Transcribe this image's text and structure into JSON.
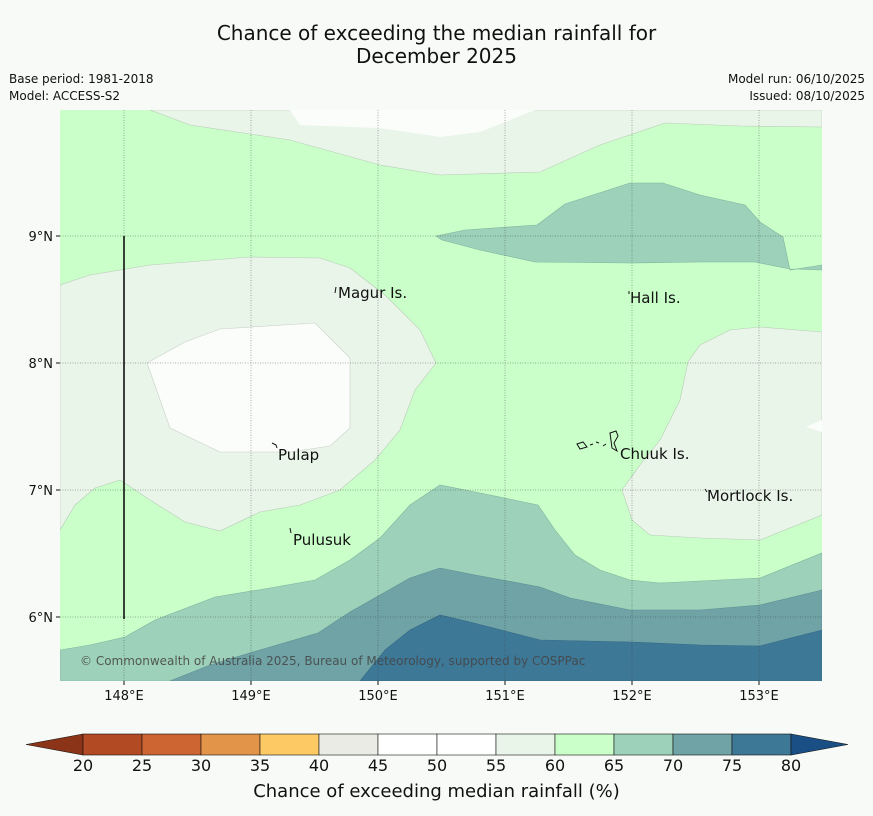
{
  "title": {
    "line1": "Chance of exceeding the median rainfall for",
    "line2": "December 2025"
  },
  "meta": {
    "base_period": "Base period: 1981-2018",
    "model": "Model: ACCESS-S2",
    "model_run": "Model run: 06/10/2025",
    "issued": "Issued: 08/10/2025"
  },
  "map": {
    "copyright": "© Commonwealth of Australia 2025, Bureau of Meteorology, supported by COSPPac",
    "places": [
      "Magur Is.",
      "Hall Is.",
      "Pulap",
      "Chuuk Is.",
      "Mortlock Is.",
      "Pulusuk"
    ],
    "lat_ticks": [
      "9°N",
      "8°N",
      "7°N",
      "6°N"
    ],
    "lon_ticks": [
      "148°E",
      "149°E",
      "150°E",
      "151°E",
      "152°E",
      "153°E"
    ]
  },
  "colorbar": {
    "title": "Chance of exceeding median rainfall (%)",
    "ticks": [
      "20",
      "25",
      "30",
      "35",
      "40",
      "45",
      "50",
      "55",
      "60",
      "65",
      "70",
      "75",
      "80"
    ],
    "bins": [
      {
        "range": "20-25",
        "color": "#b24a24"
      },
      {
        "range": "25-30",
        "color": "#cd6532"
      },
      {
        "range": "30-35",
        "color": "#e29448"
      },
      {
        "range": "35-40",
        "color": "#fdc965"
      },
      {
        "range": "40-45",
        "color": "#ebebe6"
      },
      {
        "range": "45-50",
        "color": "#ffffff"
      },
      {
        "range": "50-55",
        "color": "#ffffff"
      },
      {
        "range": "55-60",
        "color": "#eaf5e9"
      },
      {
        "range": "60-65",
        "color": "#caffca"
      },
      {
        "range": "65-70",
        "color": "#9dd1b9"
      },
      {
        "range": "70-75",
        "color": "#6fa3a6"
      },
      {
        "range": "75-80",
        "color": "#3e7897"
      }
    ],
    "under_color": "#8c3418",
    "over_color": "#1a4f85"
  },
  "colors": {
    "bg": "#f8faf7",
    "band_60_65": "#caffca",
    "band_55_60": "#eaf5e9",
    "band_50_55": "#fbfdfb",
    "band_65_70": "#9dd1b9",
    "band_70_75": "#6fa3a6",
    "band_75_80": "#3e7897"
  }
}
